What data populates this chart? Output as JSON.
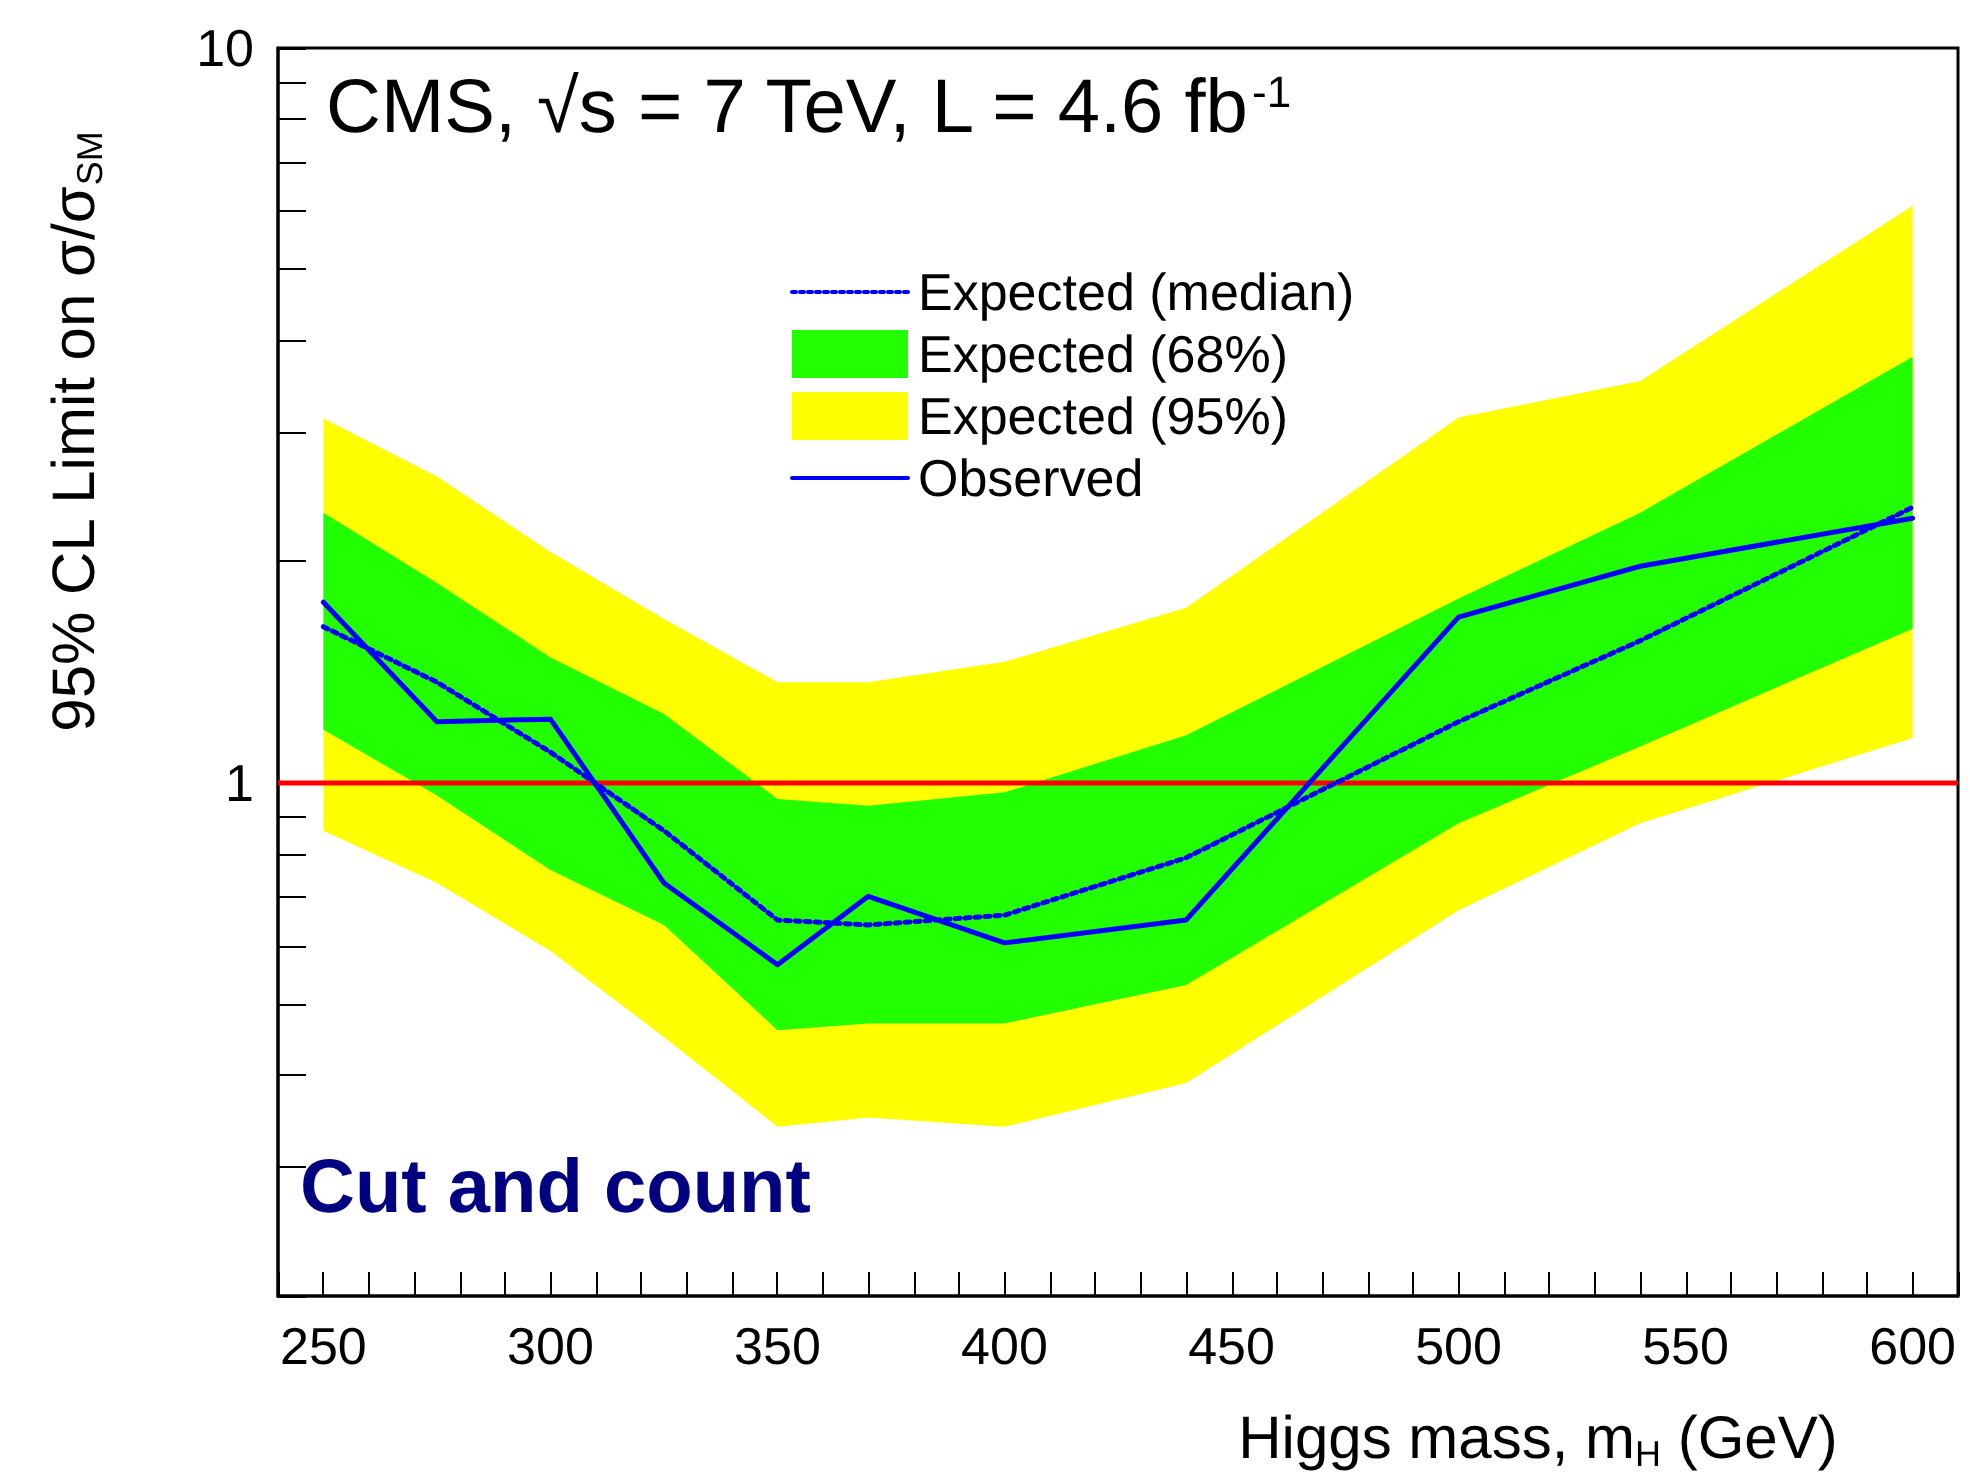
{
  "chart_data": {
    "type": "line",
    "title": "CMS, √s = 7 TeV, L = 4.6 fb$^{-1}$",
    "xlabel": "Higgs mass, m$_{H}$ (GeV)",
    "ylabel": "95% CL Limit on σ/σ$_{SM}$",
    "annotations": [
      "Cut and count"
    ],
    "x": [
      250,
      275,
      300,
      325,
      350,
      370,
      400,
      440,
      500,
      540,
      600
    ],
    "series": [
      {
        "name": "Expected (median)",
        "color": "#0000ff",
        "line_style": "dotted",
        "values": [
          1.63,
          1.37,
          1.1,
          0.86,
          0.65,
          0.64,
          0.66,
          0.79,
          1.21,
          1.56,
          2.37
        ]
      },
      {
        "name": "Expected (68%)",
        "type": "line",
        "color": "#22ff00",
        "values": [
          null,
          null,
          null,
          null,
          null,
          null,
          null,
          null,
          null,
          null,
          null
        ],
        "lower": [
          1.18,
          0.96,
          0.76,
          0.64,
          0.46,
          0.47,
          0.47,
          0.53,
          0.88,
          1.12,
          1.62
        ],
        "upper": [
          2.33,
          1.87,
          1.48,
          1.24,
          0.95,
          0.93,
          0.97,
          1.16,
          1.78,
          2.33,
          3.8
        ]
      },
      {
        "name": "Expected (95%)",
        "type": "line",
        "color": "#ffff00",
        "values": [
          null,
          null,
          null,
          null,
          null,
          null,
          null,
          null,
          null,
          null,
          null
        ],
        "lower": [
          0.86,
          0.73,
          0.59,
          0.45,
          0.34,
          0.35,
          0.34,
          0.39,
          0.67,
          0.88,
          1.15
        ],
        "upper": [
          3.13,
          2.61,
          2.06,
          1.67,
          1.37,
          1.37,
          1.46,
          1.73,
          3.14,
          3.52,
          6.1
        ]
      },
      {
        "name": "Observed",
        "color": "#0000ff",
        "line_style": "solid",
        "values": [
          1.76,
          1.21,
          1.22,
          0.73,
          0.565,
          0.7,
          0.605,
          0.65,
          1.68,
          1.97,
          2.29
        ]
      }
    ],
    "ref_lines": [
      {
        "axis": "y",
        "value": 1,
        "color": "#ff0000"
      }
    ],
    "log": "y",
    "grid": false,
    "legend": "top",
    "marker": "none",
    "xlim": [
      240,
      610
    ],
    "xticks": [
      {
        "value": 240,
        "label": null
      },
      250,
      {
        "value": 260,
        "label": null
      },
      {
        "value": 270,
        "label": null
      },
      {
        "value": 280,
        "label": null
      },
      {
        "value": 290,
        "label": null
      },
      300,
      {
        "value": 310,
        "label": null
      },
      {
        "value": 320,
        "label": null
      },
      {
        "value": 330,
        "label": null
      },
      {
        "value": 340,
        "label": null
      },
      350,
      {
        "value": 360,
        "label": null
      },
      {
        "value": 370,
        "label": null
      },
      {
        "value": 380,
        "label": null
      },
      {
        "value": 390,
        "label": null
      },
      400,
      {
        "value": 410,
        "label": null
      },
      {
        "value": 420,
        "label": null
      },
      {
        "value": 430,
        "label": null
      },
      {
        "value": 440,
        "label": null
      },
      450,
      {
        "value": 460,
        "label": null
      },
      {
        "value": 470,
        "label": null
      },
      {
        "value": 480,
        "label": null
      },
      {
        "value": 490,
        "label": null
      },
      500,
      {
        "value": 510,
        "label": null
      },
      {
        "value": 520,
        "label": null
      },
      {
        "value": 530,
        "label": null
      },
      {
        "value": 540,
        "label": null
      },
      550,
      {
        "value": 560,
        "label": null
      },
      {
        "value": 570,
        "label": null
      },
      {
        "value": 580,
        "label": null
      },
      {
        "value": 590,
        "label": null
      },
      600,
      {
        "value": 610,
        "label": null
      }
    ],
    "ylim": [
      0.2,
      10
    ],
    "yticks": [
      {
        "value": 0.2,
        "label": null
      },
      {
        "value": 0.3,
        "label": null
      },
      {
        "value": 0.4,
        "label": null
      },
      {
        "value": 0.5,
        "label": null
      },
      {
        "value": 0.6,
        "label": null
      },
      {
        "value": 0.7,
        "label": null
      },
      {
        "value": 0.8,
        "label": null
      },
      {
        "value": 0.9,
        "label": null
      },
      1,
      {
        "value": 2,
        "label": null
      },
      {
        "value": 3,
        "label": null
      },
      {
        "value": 4,
        "label": null
      },
      {
        "value": 5,
        "label": null
      },
      {
        "value": 6,
        "label": null
      },
      {
        "value": 7,
        "label": null
      },
      {
        "value": 8,
        "label": null
      },
      {
        "value": 9,
        "label": null
      },
      10
    ]
  }
}
